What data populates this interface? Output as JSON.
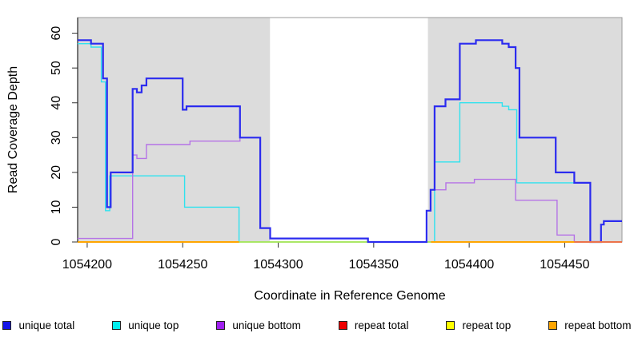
{
  "chart_data": {
    "type": "line",
    "subtype": "step-post",
    "title": "",
    "xlabel": "Coordinate in Reference Genome",
    "ylabel": "Read Coverage Depth",
    "xlim": [
      1054195,
      1054480
    ],
    "ylim": [
      0,
      64.5
    ],
    "x_ticks": [
      1054200,
      1054250,
      1054300,
      1054350,
      1054400,
      1054450
    ],
    "y_ticks": [
      0,
      10,
      20,
      30,
      40,
      50,
      60
    ],
    "grid": false,
    "legend_position": "bottom",
    "background_color": "#ffffff",
    "shaded_region_color": "#DCDCDC",
    "shaded_regions": [
      {
        "from": 1054195,
        "to": 1054295.7
      },
      {
        "from": 1054378.4,
        "to": 1054480
      }
    ],
    "series": [
      {
        "name": "unique top",
        "color": "#2fe2ee",
        "width": 1.4,
        "opacity": 1,
        "segments": [
          {
            "points": [
              [
                1054195,
                57
              ],
              [
                1054202,
                56
              ],
              [
                1054207.4,
                46
              ],
              [
                1054209.6,
                9
              ],
              [
                1054211.8,
                19
              ],
              [
                1054251,
                10
              ],
              [
                1054279.5,
                0
              ],
              [
                1054381.9,
                23
              ],
              [
                1054395.1,
                40
              ],
              [
                1054417.3,
                39
              ],
              [
                1054420.7,
                38
              ],
              [
                1054424.9,
                17
              ],
              [
                1054463.4,
                0
              ]
            ],
            "xend": 1054480
          }
        ]
      },
      {
        "name": "unique bottom",
        "color": "#b573e6",
        "width": 1.4,
        "opacity": 1,
        "segments": [
          {
            "points": [
              [
                1054195,
                1
              ],
              [
                1054223.8,
                25
              ],
              [
                1054226,
                24
              ],
              [
                1054231,
                28
              ],
              [
                1054253.8,
                29
              ],
              [
                1054280,
                30
              ],
              [
                1054290.6,
                4
              ],
              [
                1054295.8,
                1
              ],
              [
                1054347,
                0
              ],
              [
                1054377.7,
                9
              ],
              [
                1054379.8,
                15
              ],
              [
                1054387.8,
                17
              ],
              [
                1054402.7,
                18
              ],
              [
                1054424.3,
                12
              ],
              [
                1054446,
                2
              ],
              [
                1054455,
                0
              ]
            ],
            "xend": 1054480
          }
        ]
      },
      {
        "name": "repeat top",
        "color": "#f2f200",
        "width": 2,
        "opacity": 0.55,
        "segments": [
          {
            "points": [
              [
                1054279.5,
                0
              ]
            ],
            "xend": 1054380
          }
        ]
      },
      {
        "name": "unique total",
        "color": "#2b2bef",
        "width": 2.2,
        "opacity": 1,
        "segments": [
          {
            "points": [
              [
                1054195,
                58
              ],
              [
                1054202,
                57
              ],
              [
                1054208.3,
                47
              ],
              [
                1054210.4,
                10
              ],
              [
                1054212.3,
                20
              ],
              [
                1054223.8,
                44
              ],
              [
                1054226,
                43
              ],
              [
                1054228.5,
                45
              ],
              [
                1054231,
                47
              ],
              [
                1054250,
                38
              ],
              [
                1054252,
                39
              ],
              [
                1054280,
                30
              ],
              [
                1054290.6,
                4
              ],
              [
                1054295.8,
                1
              ],
              [
                1054347,
                0
              ],
              [
                1054377.7,
                9
              ],
              [
                1054379.8,
                15
              ],
              [
                1054381.9,
                39
              ],
              [
                1054387.6,
                41
              ],
              [
                1054395.1,
                57
              ],
              [
                1054403.5,
                58
              ],
              [
                1054417.3,
                57
              ],
              [
                1054420.7,
                56
              ],
              [
                1054424.3,
                50
              ],
              [
                1054426.3,
                30
              ],
              [
                1054445.3,
                20
              ],
              [
                1054455,
                17
              ],
              [
                1054463.4,
                0
              ],
              [
                1054469,
                5
              ],
              [
                1054470.5,
                6
              ]
            ],
            "xend": 1054480
          }
        ]
      },
      {
        "name": "repeat bottom",
        "color": "#ffa500",
        "width": 2,
        "opacity": 1,
        "segments": [
          {
            "points": [
              [
                1054195,
                0
              ]
            ],
            "xend": 1054279.5
          },
          {
            "points": [
              [
                1054380,
                0
              ]
            ],
            "xend": 1054480
          }
        ]
      },
      {
        "name": "repeat total",
        "color": "#e05575",
        "width": 1.3,
        "opacity": 1,
        "segments": [
          {
            "points": [
              [
                1054455,
                0
              ]
            ],
            "xend": 1054480
          }
        ]
      }
    ]
  },
  "legend": {
    "items": [
      {
        "label": "unique total",
        "color": "#1414e8"
      },
      {
        "label": "unique top",
        "color": "#00eeee"
      },
      {
        "label": "unique bottom",
        "color": "#a020f0"
      },
      {
        "label": "repeat total",
        "color": "#ee0000"
      },
      {
        "label": "repeat top",
        "color": "#ffff00"
      },
      {
        "label": "repeat bottom",
        "color": "#ffa500"
      }
    ]
  }
}
